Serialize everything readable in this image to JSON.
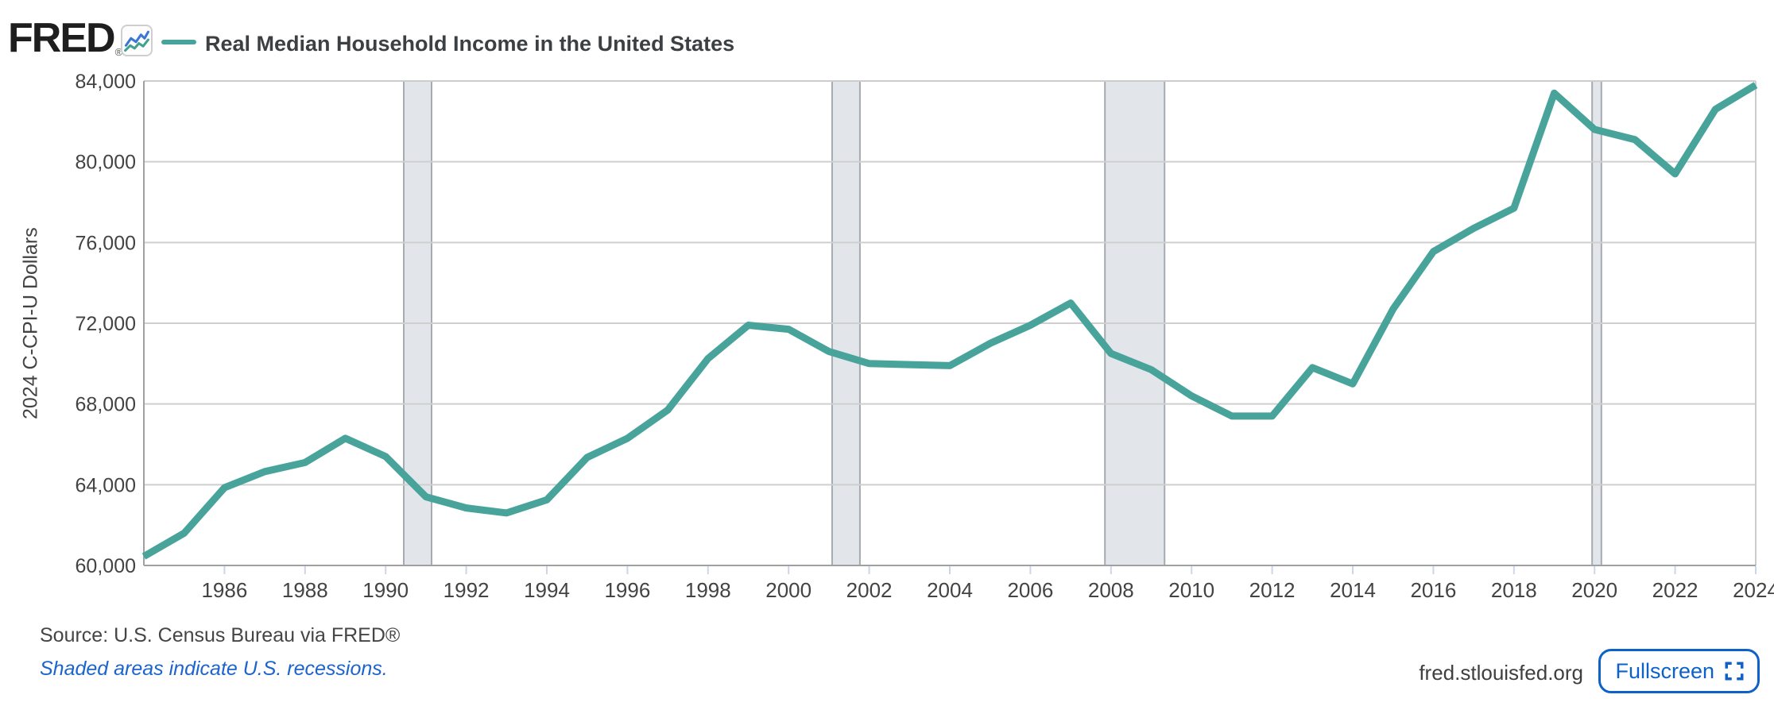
{
  "header": {
    "logo_text": "FRED",
    "logo_registered": "®",
    "title": "Real Median Household Income in the United States"
  },
  "chart_data": {
    "type": "line",
    "title": "Real Median Household Income in the United States",
    "ylabel": "2024 C-CPI-U Dollars",
    "ylim": [
      60000,
      84000
    ],
    "ytick_step": 4000,
    "yticks": [
      60000,
      64000,
      68000,
      72000,
      76000,
      80000,
      84000
    ],
    "xlim": [
      1984,
      2024
    ],
    "xticks": [
      1986,
      1988,
      1990,
      1992,
      1994,
      1996,
      1998,
      2000,
      2002,
      2004,
      2006,
      2008,
      2010,
      2012,
      2014,
      2016,
      2018,
      2020,
      2022,
      2024
    ],
    "x": [
      1984,
      1985,
      1986,
      1987,
      1988,
      1989,
      1990,
      1991,
      1992,
      1993,
      1994,
      1995,
      1996,
      1997,
      1998,
      1999,
      2000,
      2001,
      2002,
      2003,
      2004,
      2005,
      2006,
      2007,
      2008,
      2009,
      2010,
      2011,
      2012,
      2013,
      2014,
      2015,
      2016,
      2017,
      2018,
      2019,
      2020,
      2021,
      2022,
      2023,
      2024
    ],
    "values": [
      60450,
      61600,
      63850,
      64650,
      65100,
      66300,
      65400,
      63400,
      62850,
      62600,
      63250,
      65350,
      66300,
      67700,
      70250,
      71900,
      71700,
      70600,
      70000,
      69950,
      69900,
      71000,
      71900,
      73000,
      70500,
      69700,
      68400,
      67400,
      67400,
      69800,
      69000,
      72700,
      75550,
      76700,
      77700,
      83400,
      81600,
      81100,
      79400,
      82600,
      83800
    ],
    "recessions": [
      [
        1990.45,
        1991.14
      ],
      [
        2001.08,
        2001.77
      ],
      [
        2007.85,
        2009.33
      ],
      [
        2019.94,
        2020.17
      ]
    ],
    "grid": "horizontal",
    "legend_position": "top-left",
    "colors": {
      "line": "#48A49A",
      "recession_fill": "#E2E6EA",
      "recession_edge": "#A6ABB1",
      "gridline": "#CFCFCF",
      "axis_dark": "#A0A0A0",
      "axis_light": "#CCCCCC",
      "tick": "#CCD6EB",
      "label": "#434343"
    }
  },
  "footer": {
    "source": "Source: U.S. Census Bureau via FRED®",
    "note": "Shaded areas indicate U.S. recessions.",
    "site": "fred.stlouisfed.org",
    "fullscreen_label": "Fullscreen"
  }
}
